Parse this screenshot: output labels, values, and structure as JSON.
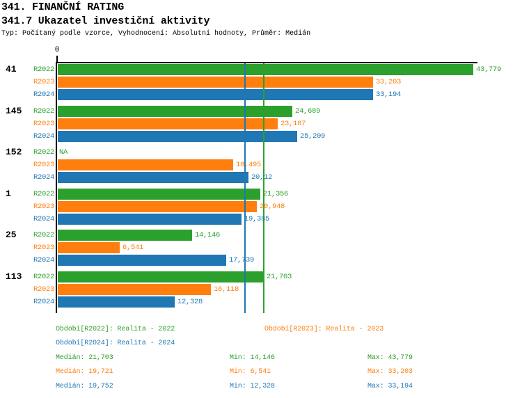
{
  "header": {
    "title1": "341. FINANČNÍ RATING",
    "title2": "341.7 Ukazatel investiční aktivity",
    "meta": "Typ: Počítaný podle vzorce, Vyhodnocení: Absolutní hodnoty, Průměr: Medián"
  },
  "colors": {
    "r2022_green": "#2ca02c",
    "r2023_orange": "#ff7f0e",
    "r2024_blue": "#1f77b4",
    "axis_black": "#000000"
  },
  "chart_data": {
    "type": "bar",
    "orientation": "horizontal",
    "axis_zero_label": "0",
    "value_axis_min": 0,
    "value_axis_max": 43.779,
    "grid": false,
    "series_labels": [
      "R2022",
      "R2023",
      "R2024"
    ],
    "series_colors": [
      "#2ca02c",
      "#ff7f0e",
      "#1f77b4"
    ],
    "na_text": "NA",
    "groups": [
      {
        "label": "41",
        "values": [
          43.779,
          33.203,
          33.194
        ],
        "display": [
          "43,779",
          "33,203",
          "33,194"
        ]
      },
      {
        "label": "145",
        "values": [
          24.689,
          23.187,
          25.209
        ],
        "display": [
          "24,689",
          "23,187",
          "25,209"
        ]
      },
      {
        "label": "152",
        "values": [
          null,
          18.495,
          20.12
        ],
        "display": [
          "NA",
          "18,495",
          "20,12"
        ]
      },
      {
        "label": "1",
        "values": [
          21.356,
          20.948,
          19.385
        ],
        "display": [
          "21,356",
          "20,948",
          "19,385"
        ]
      },
      {
        "label": "25",
        "values": [
          14.146,
          6.541,
          17.739
        ],
        "display": [
          "14,146",
          "6,541",
          "17,739"
        ]
      },
      {
        "label": "113",
        "values": [
          21.703,
          16.118,
          12.328
        ],
        "display": [
          "21,703",
          "16,118",
          "12,328"
        ]
      }
    ],
    "reference_lines": [
      {
        "value": 19.721,
        "color": "#ff7f0e",
        "meaning": "Medián R2023"
      },
      {
        "value": 19.752,
        "color": "#1f77b4",
        "meaning": "Medián R2024"
      },
      {
        "value": 21.703,
        "color": "#2ca02c",
        "meaning": "Medián R2022"
      }
    ]
  },
  "legend": {
    "r2022": "Období[R2022]: Realita - 2022",
    "r2023": "Období[R2023]: Realita - 2023",
    "r2024": "Období[R2024]: Realita - 2024"
  },
  "stats": {
    "rows": [
      {
        "color": "#2ca02c",
        "median": "Medián: 21,703",
        "min": "Min: 14,146",
        "max": "Max: 43,779"
      },
      {
        "color": "#ff7f0e",
        "median": "Medián: 19,721",
        "min": "Min: 6,541",
        "max": "Max: 33,203"
      },
      {
        "color": "#1f77b4",
        "median": "Medián: 19,752",
        "min": "Min: 12,328",
        "max": "Max: 33,194"
      }
    ]
  }
}
